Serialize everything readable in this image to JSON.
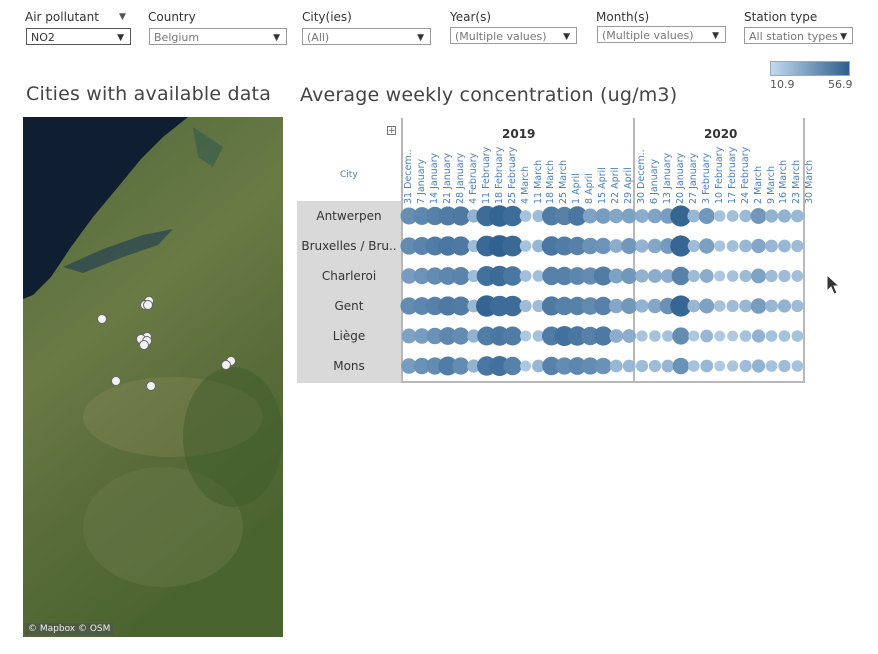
{
  "filters": [
    {
      "label": "Air pollutant",
      "value": "NO2"
    },
    {
      "label": "Country",
      "value": "Belgium"
    },
    {
      "label": "City(ies)",
      "value": "(All)"
    },
    {
      "label": "Year(s)",
      "value": "(Multiple values)"
    },
    {
      "label": "Month(s)",
      "value": "(Multiple values)"
    },
    {
      "label": "Station type",
      "value": "All station types"
    }
  ],
  "legend": {
    "min": "10.9",
    "max": "56.9",
    "color_low": "#c2daf0",
    "color_high": "#2d5f8e"
  },
  "map": {
    "title": "Cities with available data",
    "credit": "© Mapbox  © OSM"
  },
  "chart": {
    "title": "Average weekly concentration  (ug/m3)",
    "expand_symbol": "+",
    "city_header": "City"
  },
  "chart_data": {
    "type": "heatmap",
    "title": "Average weekly concentration  (ug/m3)",
    "value_range": [
      10.9,
      56.9
    ],
    "years": [
      {
        "year": "2019",
        "weeks": [
          "31 Decem..",
          "7 January",
          "14 January",
          "21 January",
          "28 January",
          "4 February",
          "11 February",
          "18 February",
          "25 February",
          "4 March",
          "11 March",
          "18 March",
          "25 March",
          "1 April",
          "8 April",
          "15 April",
          "22 April",
          "29 April"
        ]
      },
      {
        "year": "2020",
        "weeks": [
          "30 Decem..",
          "6 January",
          "13 January",
          "20 January",
          "27 January",
          "3 February",
          "10 February",
          "17 February",
          "24 February",
          "2 March",
          "9 March",
          "16 March",
          "23 March",
          "30 March"
        ]
      }
    ],
    "cities": [
      "Antwerpen",
      "Bruxelles / Bru..",
      "Charleroi",
      "Gent",
      "Liège",
      "Mons"
    ],
    "values": [
      [
        39,
        42,
        44,
        46,
        47,
        26,
        52,
        55,
        52,
        20,
        22,
        46,
        44,
        48,
        32,
        34,
        30,
        32,
        28,
        31,
        34,
        54,
        24,
        36,
        20,
        21,
        23,
        36,
        26,
        26,
        24,
        24
      ],
      [
        40,
        43,
        46,
        48,
        47,
        22,
        53,
        56,
        53,
        20,
        24,
        48,
        46,
        44,
        38,
        37,
        28,
        36,
        26,
        30,
        35,
        54,
        22,
        33,
        19,
        21,
        24,
        30,
        24,
        24,
        22,
        22
      ],
      [
        34,
        37,
        40,
        42,
        43,
        22,
        50,
        52,
        48,
        21,
        21,
        44,
        44,
        42,
        40,
        46,
        32,
        36,
        26,
        28,
        28,
        44,
        22,
        28,
        18,
        20,
        22,
        32,
        22,
        22,
        21,
        21
      ],
      [
        40,
        42,
        44,
        47,
        46,
        24,
        55,
        52,
        52,
        22,
        22,
        47,
        44,
        44,
        41,
        44,
        30,
        36,
        26,
        30,
        38,
        54,
        24,
        32,
        20,
        22,
        24,
        34,
        24,
        26,
        22,
        22
      ],
      [
        32,
        34,
        38,
        42,
        40,
        26,
        46,
        48,
        46,
        18,
        20,
        46,
        50,
        48,
        44,
        47,
        28,
        28,
        19,
        20,
        20,
        40,
        18,
        24,
        17,
        17,
        20,
        26,
        20,
        20,
        20,
        20
      ],
      [
        34,
        38,
        40,
        46,
        40,
        26,
        48,
        50,
        44,
        18,
        24,
        44,
        40,
        42,
        40,
        38,
        24,
        24,
        22,
        22,
        24,
        38,
        20,
        24,
        17,
        19,
        22,
        26,
        20,
        22,
        20,
        20
      ]
    ]
  }
}
